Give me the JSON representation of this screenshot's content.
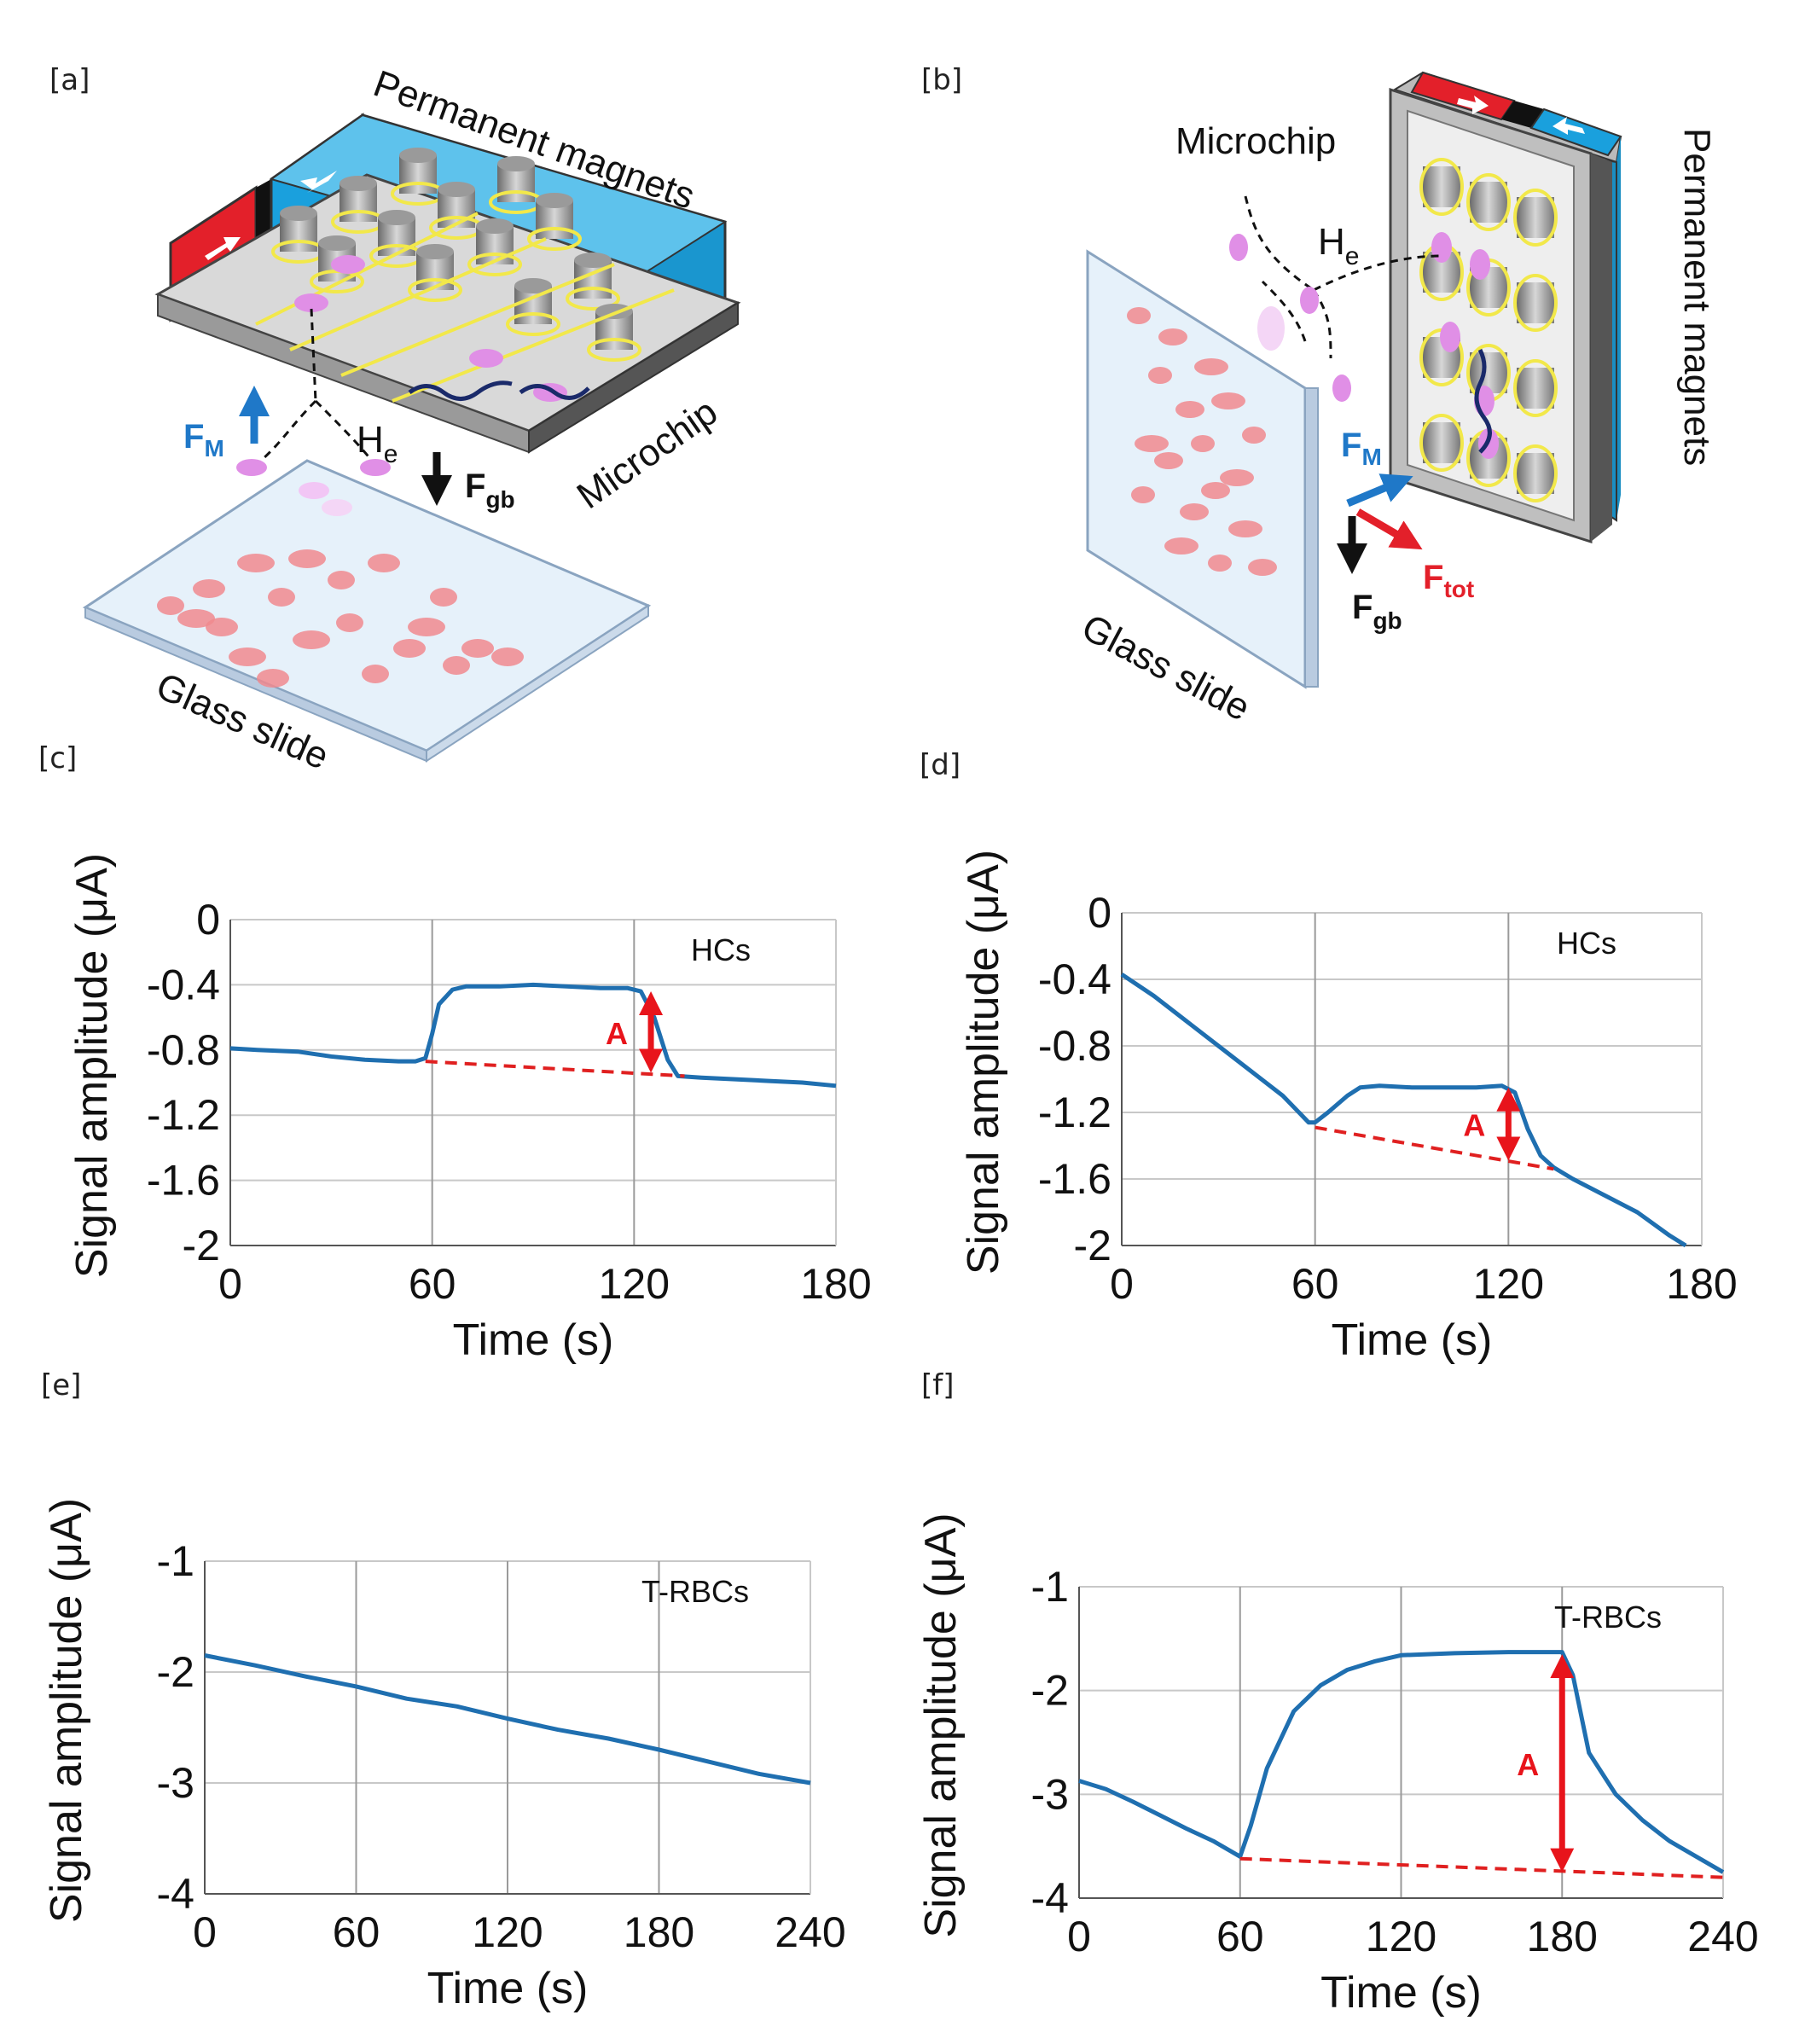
{
  "panels": {
    "a": {
      "label": "[a]",
      "magnets_label": "Permanent magnets",
      "chip_label": "Microchip",
      "slide_label": "Glass slide",
      "field_label": "H",
      "field_sub": "e",
      "fm_label": "F",
      "fm_sub": "M",
      "fgb_label": "F",
      "fgb_sub": "gb"
    },
    "b": {
      "label": "[b]",
      "magnets_label": "Permanent magnets",
      "chip_label": "Microchip",
      "slide_label": "Glass slide",
      "field_label": "H",
      "field_sub": "e",
      "fm_label": "F",
      "fm_sub": "M",
      "fgb_label": "F",
      "fgb_sub": "gb",
      "ftot_label": "F",
      "ftot_sub": "tot"
    },
    "c": {
      "label": "[c]"
    },
    "d": {
      "label": "[d]"
    },
    "e": {
      "label": "[e]"
    },
    "f": {
      "label": "[f]"
    }
  },
  "colors": {
    "series": "#1f6fb0",
    "baseline": "#e02020",
    "amplitude_arrow": "#e8141b",
    "magnet_blue": "#1aa0dd",
    "magnet_red": "#e3202a",
    "coil": "#f2e84a",
    "cell": "#f08a8e",
    "force_m": "#1f78c8"
  },
  "chart_data": [
    {
      "id": "c",
      "type": "line",
      "xlabel": "Time (s)",
      "ylabel": "Signal amplitude (μA)",
      "xlim": [
        0,
        180
      ],
      "ylim": [
        -2,
        0
      ],
      "xticks": [
        0,
        60,
        120,
        180
      ],
      "yticks": [
        0,
        -0.4,
        -0.8,
        -1.2,
        -1.6,
        -2
      ],
      "ytick_labels": [
        "0",
        "-0.4",
        "-0.8",
        "-1.2",
        "-1.6",
        "-2"
      ],
      "grid_x": [
        60,
        120
      ],
      "legend": "HCs",
      "annotation": "A",
      "series": [
        {
          "name": "HCs",
          "x": [
            0,
            8,
            20,
            30,
            40,
            50,
            55,
            58,
            60,
            62,
            66,
            70,
            80,
            90,
            100,
            110,
            118,
            122,
            126,
            130,
            133,
            140,
            150,
            160,
            170,
            180
          ],
          "y": [
            -0.79,
            -0.8,
            -0.81,
            -0.84,
            -0.86,
            -0.87,
            -0.87,
            -0.85,
            -0.7,
            -0.52,
            -0.43,
            -0.41,
            -0.41,
            -0.4,
            -0.41,
            -0.42,
            -0.42,
            -0.44,
            -0.6,
            -0.86,
            -0.96,
            -0.97,
            -0.98,
            -0.99,
            -1.0,
            -1.02
          ]
        }
      ],
      "baseline": {
        "x": [
          58,
          135
        ],
        "y": [
          -0.87,
          -0.96
        ]
      },
      "arrow": {
        "x": 125,
        "y_top": -0.44,
        "y_bottom": -0.94
      }
    },
    {
      "id": "d",
      "type": "line",
      "xlabel": "Time (s)",
      "ylabel": "Signal amplitude (μA)",
      "xlim": [
        0,
        180
      ],
      "ylim": [
        -2,
        0
      ],
      "xticks": [
        0,
        60,
        120,
        180
      ],
      "yticks": [
        0,
        -0.4,
        -0.8,
        -1.2,
        -1.6,
        -2
      ],
      "ytick_labels": [
        "0",
        "-0.4",
        "-0.8",
        "-1.2",
        "-1.6",
        "-2"
      ],
      "grid_x": [
        60,
        120
      ],
      "legend": "HCs",
      "annotation": "A",
      "series": [
        {
          "name": "HCs",
          "x": [
            0,
            10,
            20,
            30,
            40,
            50,
            58,
            60,
            64,
            70,
            74,
            80,
            90,
            100,
            110,
            118,
            122,
            126,
            130,
            134,
            140,
            150,
            160,
            170,
            175
          ],
          "y": [
            -0.37,
            -0.5,
            -0.65,
            -0.8,
            -0.95,
            -1.1,
            -1.26,
            -1.26,
            -1.2,
            -1.1,
            -1.05,
            -1.04,
            -1.05,
            -1.05,
            -1.05,
            -1.04,
            -1.08,
            -1.3,
            -1.46,
            -1.53,
            -1.6,
            -1.7,
            -1.8,
            -1.94,
            -2.0
          ]
        }
      ],
      "baseline": {
        "x": [
          60,
          134
        ],
        "y": [
          -1.29,
          -1.54
        ]
      },
      "arrow": {
        "x": 120,
        "y_top": -1.05,
        "y_bottom": -1.49
      }
    },
    {
      "id": "e",
      "type": "line",
      "xlabel": "Time (s)",
      "ylabel": "Signal amplitude (μA)",
      "xlim": [
        0,
        240
      ],
      "ylim": [
        -4,
        -1
      ],
      "xticks": [
        0,
        60,
        120,
        180,
        240
      ],
      "yticks": [
        -1,
        -2,
        -3,
        -4
      ],
      "ytick_labels": [
        "-1",
        "-2",
        "-3",
        "-4"
      ],
      "grid_x": [
        60,
        120,
        180
      ],
      "legend": "T-RBCs",
      "series": [
        {
          "name": "T-RBCs",
          "x": [
            0,
            20,
            40,
            60,
            80,
            100,
            120,
            140,
            160,
            180,
            200,
            220,
            240
          ],
          "y": [
            -1.85,
            -1.94,
            -2.04,
            -2.13,
            -2.24,
            -2.31,
            -2.42,
            -2.52,
            -2.6,
            -2.7,
            -2.81,
            -2.92,
            -3.0
          ]
        }
      ]
    },
    {
      "id": "f",
      "type": "line",
      "xlabel": "Time (s)",
      "ylabel": "Signal amplitude (μA)",
      "xlim": [
        0,
        240
      ],
      "ylim": [
        -4,
        -1
      ],
      "xticks": [
        0,
        60,
        120,
        180,
        240
      ],
      "yticks": [
        -1,
        -2,
        -3,
        -4
      ],
      "ytick_labels": [
        "-1",
        "-2",
        "-3",
        "-4"
      ],
      "grid_x": [
        60,
        120,
        180
      ],
      "legend": "T-RBCs",
      "annotation": "A",
      "series": [
        {
          "name": "T-RBCs",
          "x": [
            0,
            10,
            20,
            30,
            40,
            50,
            60,
            64,
            70,
            80,
            90,
            100,
            110,
            120,
            140,
            160,
            175,
            180,
            184,
            190,
            200,
            210,
            220,
            230,
            240
          ],
          "y": [
            -2.87,
            -2.95,
            -3.07,
            -3.2,
            -3.33,
            -3.45,
            -3.6,
            -3.3,
            -2.75,
            -2.2,
            -1.95,
            -1.8,
            -1.72,
            -1.66,
            -1.64,
            -1.63,
            -1.63,
            -1.63,
            -1.85,
            -2.6,
            -3.0,
            -3.25,
            -3.45,
            -3.6,
            -3.75
          ]
        }
      ],
      "baseline": {
        "x": [
          60,
          240
        ],
        "y": [
          -3.62,
          -3.8
        ]
      },
      "arrow": {
        "x": 180,
        "y_top": -1.65,
        "y_bottom": -3.75
      }
    }
  ]
}
